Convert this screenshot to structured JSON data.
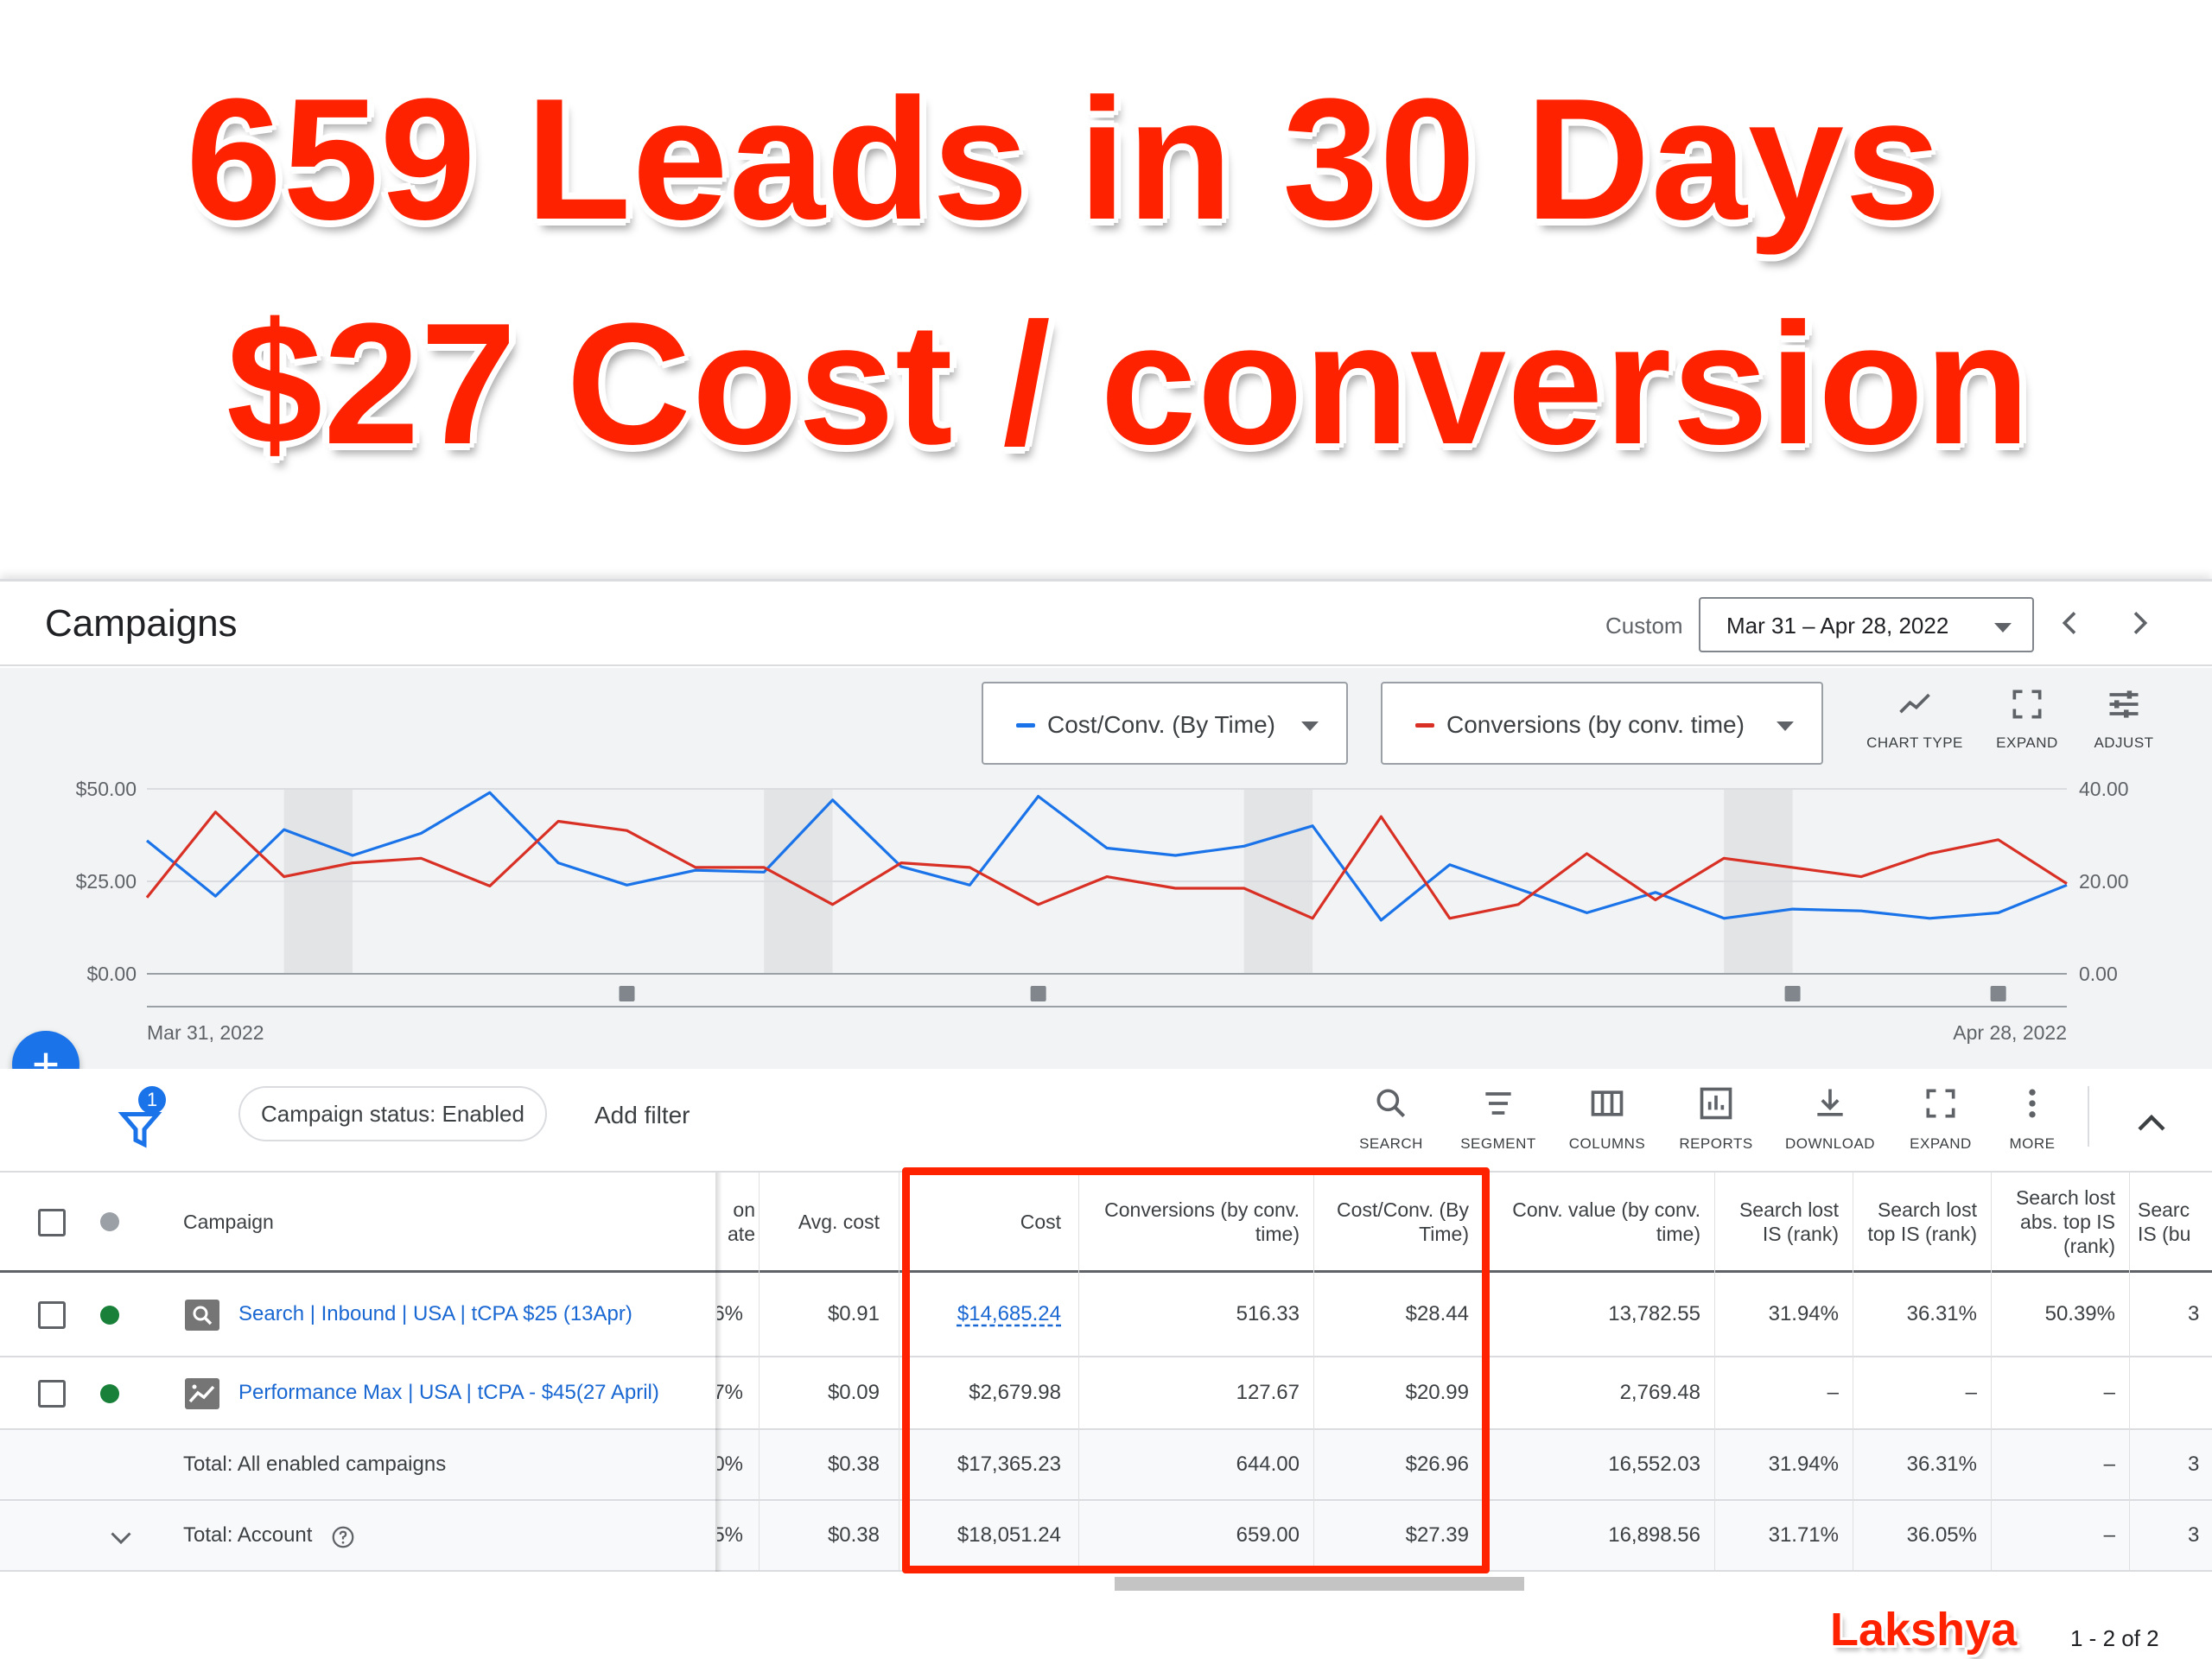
{
  "headline": {
    "line1": "659 Leads in 30 Days",
    "line2": "$27 Cost / conversion"
  },
  "topbar": {
    "title": "Campaigns",
    "custom_label": "Custom",
    "date_range": "Mar 31 – Apr 28, 2022",
    "prev_icon": "chevron-left-icon",
    "next_icon": "chevron-right-icon"
  },
  "chart_controls": {
    "metric1": "Cost/Conv. (By Time)",
    "metric2": "Conversions (by conv. time)",
    "tools": [
      "CHART TYPE",
      "EXPAND",
      "ADJUST"
    ]
  },
  "chart_data": {
    "type": "line",
    "x_start_label": "Mar 31, 2022",
    "x_end_label": "Apr 28, 2022",
    "left_axis_ticks": [
      "$50.00",
      "$25.00",
      "$0.00"
    ],
    "right_axis_ticks": [
      "40.00",
      "20.00",
      "0.00"
    ],
    "ylim_left": [
      0,
      50
    ],
    "ylim_right": [
      0,
      40
    ],
    "grid": true,
    "series": [
      {
        "name": "Cost/Conv. (By Time)",
        "color": "#1a73e8",
        "axis": "left",
        "values": [
          36,
          21,
          39,
          32,
          38,
          49,
          30,
          24,
          28,
          27.5,
          47,
          29,
          24,
          48,
          34,
          32,
          34.5,
          40,
          14.5,
          29.5,
          23,
          16.5,
          22,
          15,
          17.5,
          17,
          15,
          16.5,
          24
        ]
      },
      {
        "name": "Conversions (by conv. time)",
        "color": "#d93025",
        "axis": "right",
        "values": [
          16.5,
          35,
          21,
          24,
          25,
          19,
          33,
          31,
          23,
          23,
          15,
          24,
          23,
          15,
          21,
          18.5,
          18.5,
          12,
          34,
          12,
          15,
          26,
          16,
          25,
          23,
          21,
          26,
          29,
          19.5
        ]
      }
    ],
    "weekend_bands": [
      [
        2,
        3
      ],
      [
        9,
        10
      ],
      [
        16,
        17
      ],
      [
        23,
        24
      ]
    ],
    "annotation_markers": [
      7,
      13,
      24,
      27
    ]
  },
  "filterbar": {
    "filter_count": "1",
    "chip": "Campaign status: Enabled",
    "add_filter": "Add filter",
    "tools": [
      "SEARCH",
      "SEGMENT",
      "COLUMNS",
      "REPORTS",
      "DOWNLOAD",
      "EXPAND",
      "MORE"
    ]
  },
  "table": {
    "headers": {
      "campaign": "Campaign",
      "conv_rate": "on\nate",
      "avg_cost": "Avg. cost",
      "cost": "Cost",
      "conversions": "Conversions (by conv. time)",
      "cost_conv": "Cost/Conv. (By Time)",
      "conv_value": "Conv. value (by conv. time)",
      "search_lost_is_rank": "Search lost IS (rank)",
      "search_lost_top_is": "Search lost top IS (rank)",
      "search_lost_abs_top": "Search lost abs. top IS (rank)",
      "search_is_budget": "Searc IS (bu"
    },
    "rows": [
      {
        "campaign": "Search | Inbound | USA | tCPA $25 (13Apr)",
        "icon": "search-campaign-icon",
        "status_color": "#188038",
        "conv_rate": "6%",
        "avg_cost": "$0.91",
        "cost": "$14,685.24",
        "conversions": "516.33",
        "cost_conv": "$28.44",
        "conv_value": "13,782.55",
        "lost_is_rank": "31.94%",
        "lost_top_is": "36.31%",
        "lost_abs_top": "50.39%",
        "is_budget": "3"
      },
      {
        "campaign": "Performance Max | USA | tCPA - $45(27 April)",
        "icon": "performance-max-icon",
        "status_color": "#188038",
        "conv_rate": "7%",
        "avg_cost": "$0.09",
        "cost": "$2,679.98",
        "conversions": "127.67",
        "cost_conv": "$20.99",
        "conv_value": "2,769.48",
        "lost_is_rank": "–",
        "lost_top_is": "–",
        "lost_abs_top": "–",
        "is_budget": ""
      }
    ],
    "totals": [
      {
        "label": "Total: All enabled campaigns",
        "conv_rate": "0%",
        "avg_cost": "$0.38",
        "cost": "$17,365.23",
        "conversions": "644.00",
        "cost_conv": "$26.96",
        "conv_value": "16,552.03",
        "lost_is_rank": "31.94%",
        "lost_top_is": "36.31%",
        "lost_abs_top": "–",
        "is_budget": "3"
      },
      {
        "label": "Total: Account",
        "conv_rate": "5%",
        "avg_cost": "$0.38",
        "cost": "$18,051.24",
        "conversions": "659.00",
        "cost_conv": "$27.39",
        "conv_value": "16,898.56",
        "lost_is_rank": "31.71%",
        "lost_top_is": "36.05%",
        "lost_abs_top": "–",
        "is_budget": "3"
      }
    ]
  },
  "footer": {
    "brand": "Lakshya",
    "pagination": "1 - 2 of 2"
  }
}
